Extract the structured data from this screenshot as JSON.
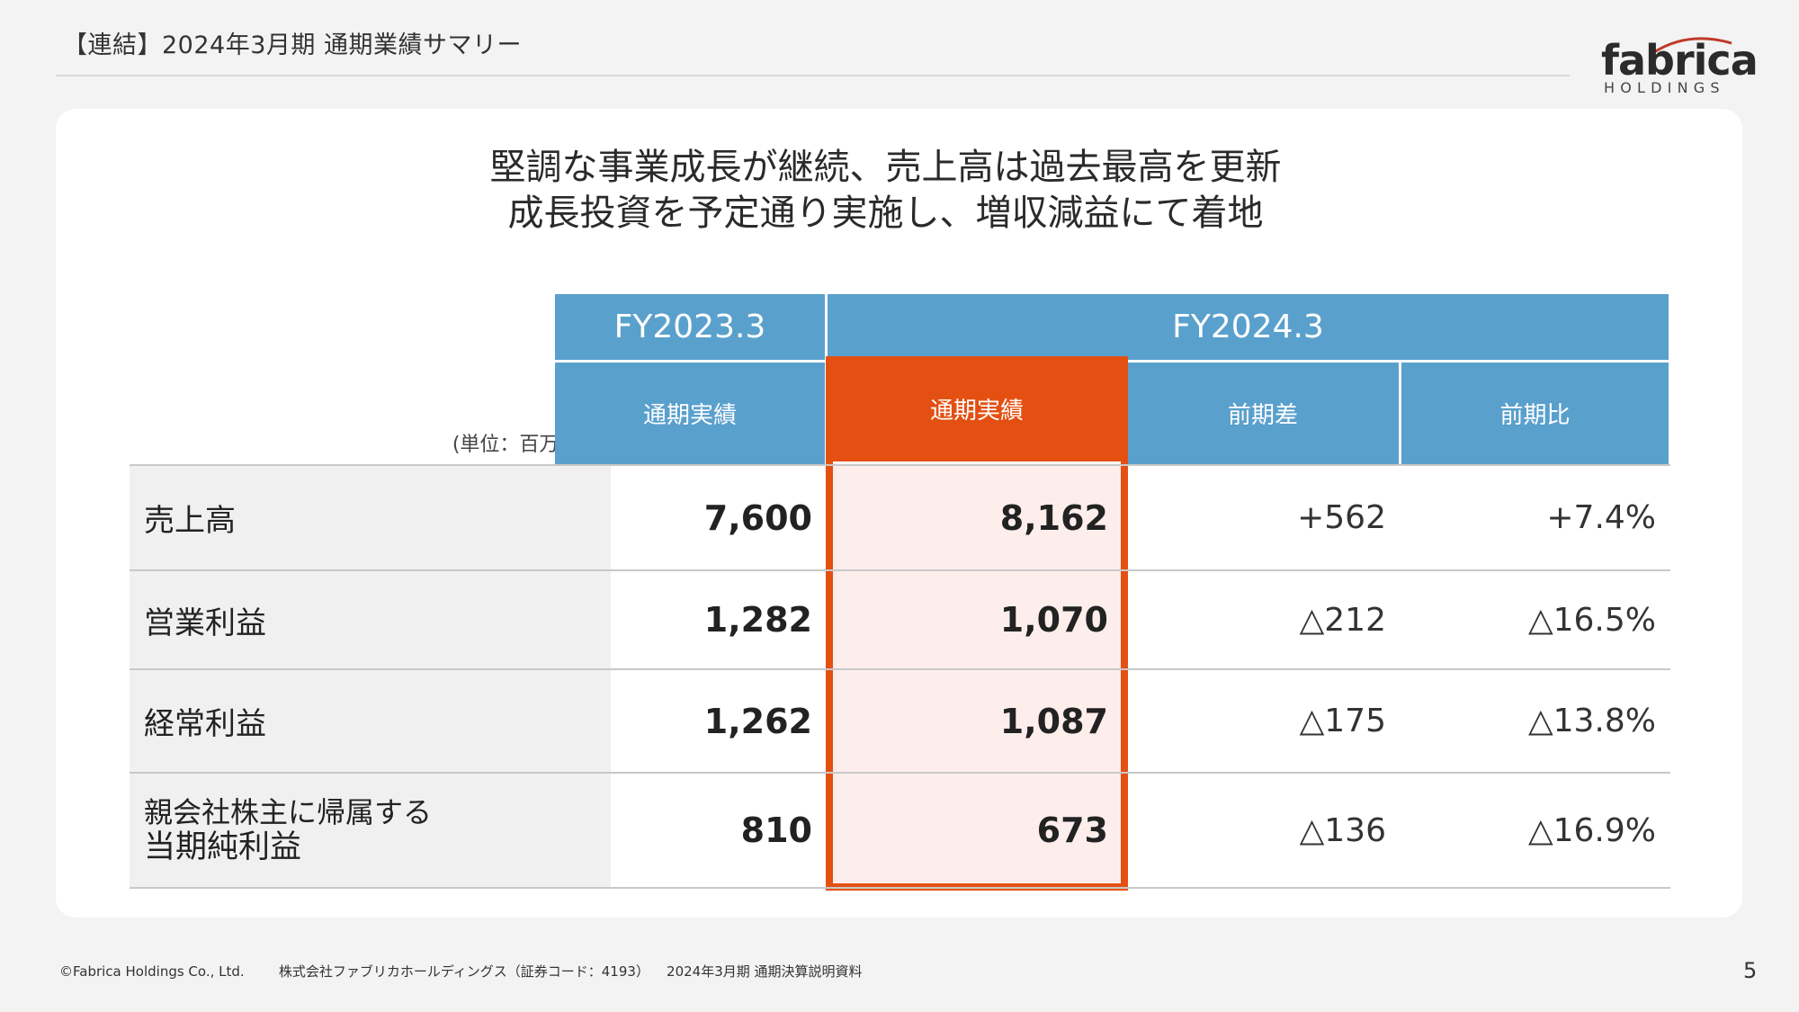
{
  "header": {
    "title": "【連結】2024年3月期 通期業績サマリー"
  },
  "logo": {
    "word": "fabrica",
    "sub": "HOLDINGS"
  },
  "headline": {
    "line1": "堅調な事業成長が継続、売上高は過去最高を更新",
    "line2": "成長投資を予定通り実施し、増収減益にて着地"
  },
  "table": {
    "unit": "(単位：百万円)",
    "period_headers": [
      "FY2023.3",
      "FY2024.3"
    ],
    "column_headers": [
      "通期実績",
      "通期実績",
      "前期差",
      "前期比"
    ],
    "rows": [
      {
        "label": "売上高",
        "fy2023": "7,600",
        "fy2024": "8,162",
        "diff": "+562",
        "ratio": "+7.4%"
      },
      {
        "label": "営業利益",
        "fy2023": "1,282",
        "fy2024": "1,070",
        "diff": "△212",
        "ratio": "△16.5%"
      },
      {
        "label": "経常利益",
        "fy2023": "1,262",
        "fy2024": "1,087",
        "diff": "△175",
        "ratio": "△13.8%"
      },
      {
        "label_line1": "親会社株主に帰属する",
        "label_line2": "当期純利益",
        "fy2023": "810",
        "fy2024": "673",
        "diff": "△136",
        "ratio": "△16.9%"
      }
    ]
  },
  "footer": {
    "copyright": "©Fabrica Holdings Co., Ltd.",
    "company": "株式会社ファブリカホールディングス（証券コード：4193）",
    "document": "2024年3月期 通期決算説明資料",
    "page": "5"
  },
  "colors": {
    "header_blue": "#5aa0cd",
    "highlight_orange": "#e45012",
    "highlight_fill": "#fdeeec",
    "label_bg": "#f0f0f0",
    "page_bg": "#f2f3f2"
  }
}
